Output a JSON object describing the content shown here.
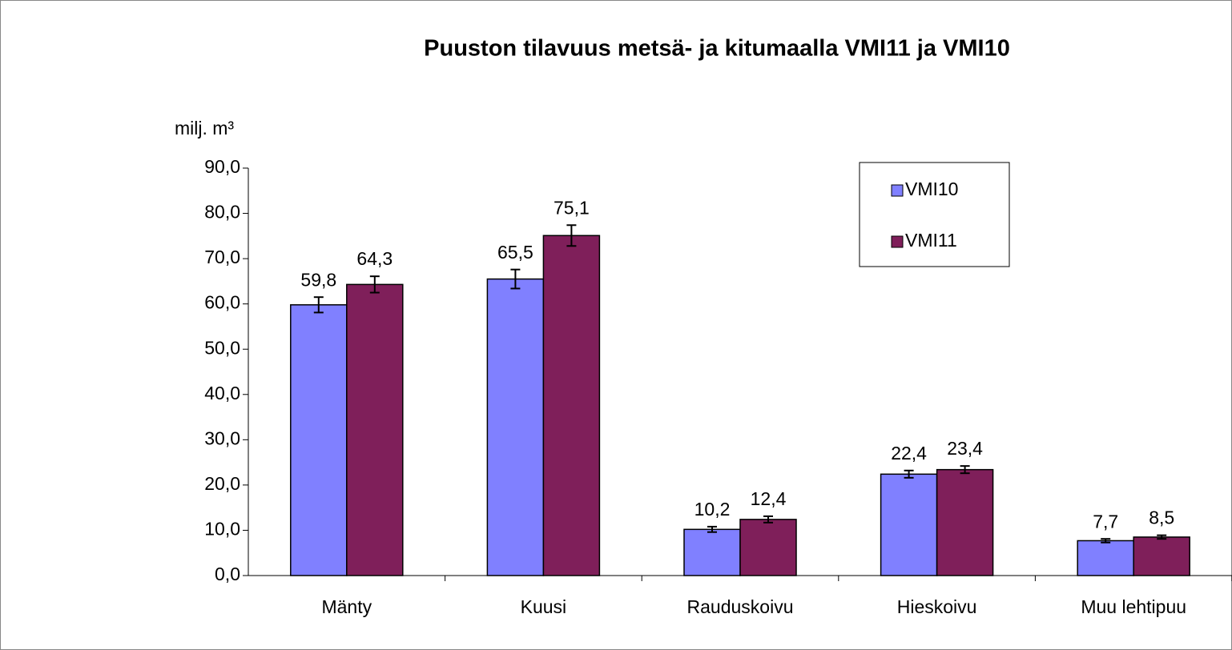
{
  "chart_data": {
    "type": "bar",
    "title": "Puuston tilavuus metsä- ja kitumaalla VMI11 ja VMI10",
    "y_label": "milj. m³",
    "categories": [
      "Mänty",
      "Kuusi",
      "Rauduskoivu",
      "Hieskoivu",
      "Muu lehtipuu"
    ],
    "series": [
      {
        "name": "VMI10",
        "color": "#8080ff",
        "values": [
          59.8,
          65.5,
          10.2,
          22.4,
          7.7
        ],
        "value_labels": [
          "59,8",
          "65,5",
          "10,2",
          "22,4",
          "7,7"
        ],
        "errors": [
          1.7,
          2.1,
          0.6,
          0.8,
          0.4
        ]
      },
      {
        "name": "VMI11",
        "color": "#7f1f5a",
        "values": [
          64.3,
          75.1,
          12.4,
          23.4,
          8.5
        ],
        "value_labels": [
          "64,3",
          "75,1",
          "12,4",
          "23,4",
          "8,5"
        ],
        "errors": [
          1.8,
          2.3,
          0.7,
          0.8,
          0.4
        ]
      }
    ],
    "ylim": [
      0,
      90
    ],
    "yticks": [
      {
        "value": 0,
        "label": "0,0"
      },
      {
        "value": 10,
        "label": "10,0"
      },
      {
        "value": 20,
        "label": "20,0"
      },
      {
        "value": 30,
        "label": "30,0"
      },
      {
        "value": 40,
        "label": "40,0"
      },
      {
        "value": 50,
        "label": "50,0"
      },
      {
        "value": 60,
        "label": "60,0"
      },
      {
        "value": 70,
        "label": "70,0"
      },
      {
        "value": 80,
        "label": "80,0"
      },
      {
        "value": 90,
        "label": "90,0"
      }
    ],
    "grid": false,
    "legend": "upper right"
  }
}
